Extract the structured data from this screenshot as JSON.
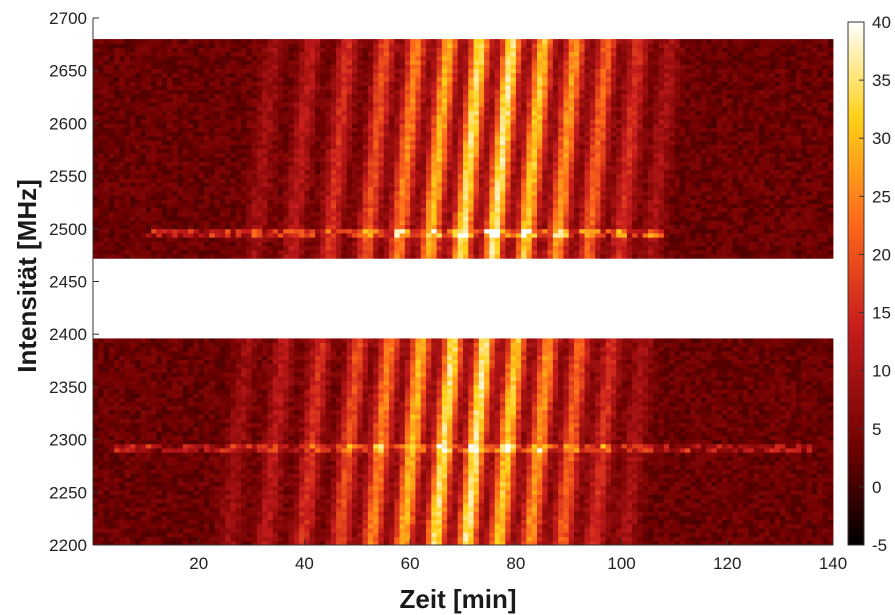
{
  "chart_data": {
    "type": "heatmap",
    "title": "",
    "xlabel": "Zeit [min]",
    "ylabel": "Intensität [MHz]",
    "xlim": [
      0,
      140
    ],
    "ylim": [
      2200,
      2700
    ],
    "x_ticks": [
      20,
      40,
      60,
      80,
      100,
      120,
      140
    ],
    "y_ticks": [
      2200,
      2250,
      2300,
      2350,
      2400,
      2450,
      2500,
      2550,
      2600,
      2650,
      2700
    ],
    "x_tick_labels": [
      "20",
      "40",
      "60",
      "80",
      "100",
      "120",
      "140"
    ],
    "y_tick_labels": [
      "2200",
      "2250",
      "2300",
      "2350",
      "2400",
      "2450",
      "2500",
      "2550",
      "2600",
      "2650",
      "2700"
    ],
    "colorbar": {
      "range": [
        -5,
        40
      ],
      "ticks": [
        -5,
        0,
        5,
        10,
        15,
        20,
        25,
        30,
        35,
        40
      ],
      "tick_labels": [
        "-5",
        "0",
        "5",
        "10",
        "15",
        "20",
        "25",
        "30",
        "35",
        "40"
      ],
      "colormap": "hot",
      "colors": [
        "#000000",
        "#6e0000",
        "#c81d1d",
        "#ff6a1a",
        "#ffd21a",
        "#ffffff"
      ]
    },
    "data_blocks": [
      {
        "name": "upper",
        "y_range": [
          2472,
          2680
        ],
        "x_range": [
          0,
          140
        ]
      },
      {
        "name": "lower",
        "y_range": [
          2200,
          2395
        ],
        "x_range": [
          0,
          140
        ]
      }
    ],
    "bright_stripes": [
      {
        "x": 30,
        "peak": 6
      },
      {
        "x": 37,
        "peak": 9
      },
      {
        "x": 44,
        "peak": 13
      },
      {
        "x": 51,
        "peak": 17
      },
      {
        "x": 57,
        "peak": 22
      },
      {
        "x": 63,
        "peak": 27
      },
      {
        "x": 69,
        "peak": 32
      },
      {
        "x": 75,
        "peak": 33
      },
      {
        "x": 81,
        "peak": 29
      },
      {
        "x": 87,
        "peak": 24
      },
      {
        "x": 93,
        "peak": 19
      },
      {
        "x": 99,
        "peak": 13
      },
      {
        "x": 105,
        "peak": 7
      }
    ],
    "stripe_tilt_per_mhz": 0.018,
    "noisy_rows": [
      {
        "y": 2495,
        "x_range": [
          10,
          108
        ],
        "level": 18
      },
      {
        "y": 2293,
        "x_range": [
          4,
          136
        ],
        "level": 14
      }
    ],
    "background_level": 3
  }
}
